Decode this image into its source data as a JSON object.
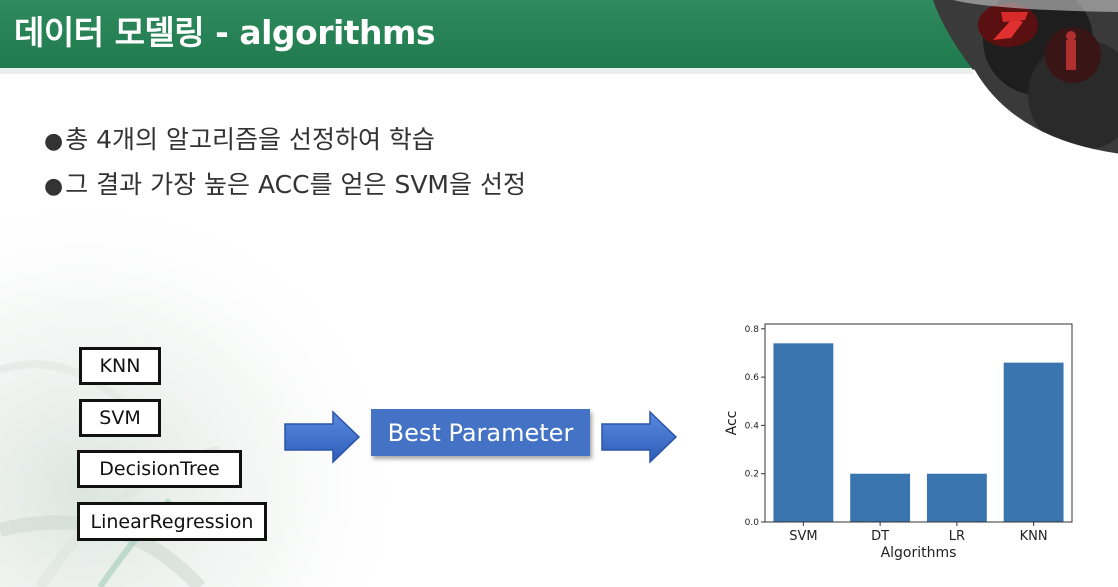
{
  "slide": {
    "title": "데이터 모델링 - algorithms",
    "bullets": [
      "총 4개의 알고리즘을 선정하여 학습",
      "그 결과 가장 높은 ACC를 얻은 SVM을 선정"
    ],
    "bullet_marker": "●",
    "colors": {
      "header": "#2a8558",
      "process_box": "#4472c4",
      "bar": "#3a75b0"
    }
  },
  "algorithms": [
    "KNN",
    "SVM",
    "DecisionTree",
    "LinearRegression"
  ],
  "process": {
    "label": "Best Parameter"
  },
  "chart_data": {
    "type": "bar",
    "categories": [
      "SVM",
      "DT",
      "LR",
      "KNN"
    ],
    "values": [
      0.74,
      0.2,
      0.2,
      0.66
    ],
    "xlabel": "Algorithms",
    "ylabel": "Acc",
    "ylim": [
      0,
      0.82
    ],
    "yticks": [
      "0.0",
      "0.2",
      "0.4",
      "0.6",
      "0.8"
    ],
    "grid": false
  }
}
